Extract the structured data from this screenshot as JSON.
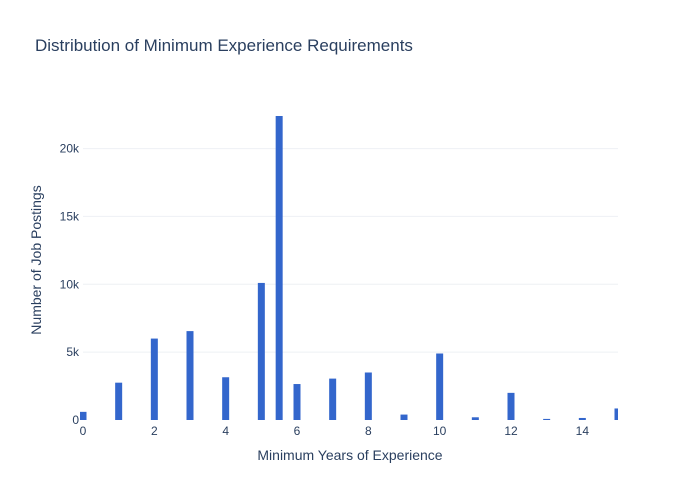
{
  "chart_data": {
    "type": "bar",
    "title": "Distribution of Minimum Experience Requirements",
    "xlabel": "Minimum Years of Experience",
    "ylabel": "Number of Job Postings",
    "x": [
      0,
      1,
      2,
      3,
      4,
      5,
      5.5,
      6,
      7,
      8,
      9,
      10,
      11,
      12,
      13,
      14,
      15
    ],
    "values": [
      600,
      2750,
      6000,
      6550,
      3150,
      10100,
      22400,
      2650,
      3050,
      3500,
      400,
      4900,
      200,
      2000,
      80,
      150,
      850
    ],
    "xlim": [
      0,
      15
    ],
    "ylim": [
      0,
      23579
    ],
    "x_ticks": [
      "0",
      "2",
      "4",
      "6",
      "8",
      "10",
      "12",
      "14"
    ],
    "y_ticks": [
      "0",
      "5k",
      "10k",
      "15k",
      "20k"
    ],
    "grid": "horizontal",
    "bar_color": "#3366cc"
  }
}
